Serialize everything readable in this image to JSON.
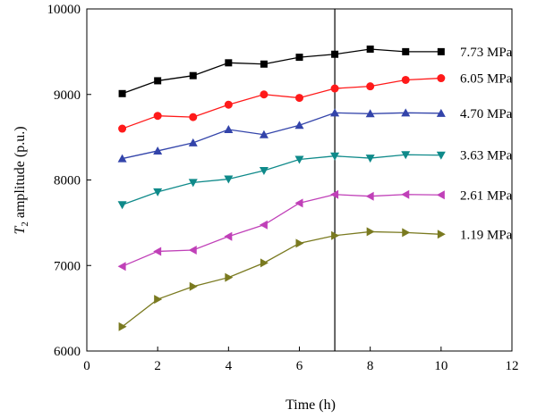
{
  "chart_data": {
    "type": "line",
    "xlabel": "Time (h)",
    "ylabel_main": "T",
    "ylabel_sub": "2",
    "ylabel_rest": " amplitude (p.u.)",
    "xlim": [
      0,
      12
    ],
    "ylim": [
      6000,
      10000
    ],
    "xticks": [
      0,
      2,
      4,
      6,
      8,
      10,
      12
    ],
    "yticks": [
      6000,
      7000,
      8000,
      9000,
      10000
    ],
    "grid": false,
    "vertical_line_x": 7,
    "x": [
      1,
      2,
      3,
      4,
      5,
      6,
      7,
      8,
      9,
      10
    ],
    "series": [
      {
        "name": "7.73 MPa",
        "color": "#000000",
        "marker": "square",
        "values": [
          9010,
          9160,
          9220,
          9370,
          9355,
          9435,
          9470,
          9530,
          9500,
          9500
        ]
      },
      {
        "name": "6.05 MPa",
        "color": "#ff1a1a",
        "marker": "circle",
        "values": [
          8600,
          8750,
          8735,
          8880,
          9000,
          8960,
          9070,
          9095,
          9170,
          9190
        ]
      },
      {
        "name": "4.70 MPa",
        "color": "#3344aa",
        "marker": "triangle-up",
        "values": [
          8250,
          8340,
          8435,
          8590,
          8530,
          8640,
          8785,
          8775,
          8785,
          8780
        ]
      },
      {
        "name": "3.63 MPa",
        "color": "#0f8a8a",
        "marker": "triangle-down",
        "values": [
          7710,
          7860,
          7970,
          8010,
          8110,
          8240,
          8280,
          8255,
          8295,
          8290
        ]
      },
      {
        "name": "2.61 MPa",
        "color": "#c040b8",
        "marker": "triangle-left",
        "values": [
          6990,
          7165,
          7180,
          7340,
          7475,
          7730,
          7830,
          7810,
          7830,
          7825
        ]
      },
      {
        "name": "1.19 MPa",
        "color": "#7a7a20",
        "marker": "triangle-right",
        "values": [
          6285,
          6605,
          6755,
          6860,
          7030,
          7260,
          7350,
          7395,
          7385,
          7365
        ]
      }
    ]
  }
}
